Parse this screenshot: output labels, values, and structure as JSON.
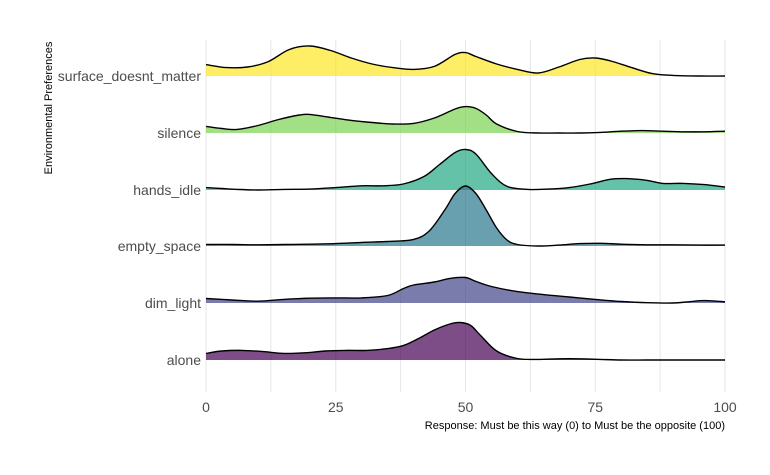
{
  "chart_data": {
    "type": "area",
    "subtype": "ridgeline",
    "title": "",
    "xlabel": "Response: Must be this way (0) to Must be the opposite (100)",
    "ylabel": "Environmental Preferences",
    "xlim": [
      0,
      100
    ],
    "x_ticks": [
      0,
      25,
      50,
      75,
      100
    ],
    "grid": true,
    "legend": "none",
    "series": [
      {
        "name": "surface_doesnt_matter",
        "color": "#fde725",
        "x": [
          0,
          4,
          8,
          12,
          16,
          20,
          24,
          28,
          32,
          36,
          40,
          44,
          48,
          50,
          52,
          56,
          60,
          64,
          68,
          72,
          75,
          78,
          82,
          86,
          90,
          95,
          100
        ],
        "density": [
          0.38,
          0.28,
          0.3,
          0.48,
          0.88,
          1.0,
          0.85,
          0.6,
          0.4,
          0.28,
          0.22,
          0.32,
          0.72,
          0.78,
          0.65,
          0.4,
          0.22,
          0.1,
          0.3,
          0.55,
          0.6,
          0.5,
          0.28,
          0.08,
          0.02,
          0.0,
          0.0
        ]
      },
      {
        "name": "silence",
        "color": "#7ad151",
        "x": [
          0,
          3,
          6,
          10,
          14,
          18,
          20,
          24,
          28,
          32,
          36,
          40,
          44,
          48,
          50,
          52,
          54,
          56,
          60,
          64,
          68,
          72,
          76,
          80,
          84,
          88,
          92,
          96,
          100
        ],
        "density": [
          0.22,
          0.15,
          0.12,
          0.25,
          0.45,
          0.6,
          0.62,
          0.52,
          0.42,
          0.35,
          0.3,
          0.32,
          0.5,
          0.8,
          0.88,
          0.82,
          0.6,
          0.3,
          0.05,
          0.0,
          0.0,
          0.0,
          0.02,
          0.06,
          0.08,
          0.06,
          0.04,
          0.04,
          0.06
        ]
      },
      {
        "name": "hands_idle",
        "color": "#22a884",
        "x": [
          0,
          3,
          6,
          10,
          15,
          20,
          25,
          30,
          34,
          38,
          42,
          45,
          48,
          50,
          52,
          55,
          58,
          62,
          66,
          70,
          74,
          78,
          81,
          85,
          88,
          92,
          96,
          100
        ],
        "density": [
          0.08,
          0.05,
          0.02,
          0.0,
          0.02,
          0.03,
          0.08,
          0.14,
          0.14,
          0.2,
          0.45,
          0.85,
          1.25,
          1.35,
          1.2,
          0.55,
          0.12,
          0.02,
          0.03,
          0.08,
          0.2,
          0.36,
          0.38,
          0.32,
          0.22,
          0.22,
          0.18,
          0.1
        ]
      },
      {
        "name": "empty_space",
        "color": "#2a788e",
        "x": [
          0,
          5,
          10,
          15,
          20,
          25,
          30,
          35,
          40,
          43,
          46,
          48,
          50,
          52,
          54,
          56,
          58,
          60,
          64,
          68,
          72,
          76,
          80,
          85,
          90,
          95,
          100
        ],
        "density": [
          0.05,
          0.05,
          0.04,
          0.05,
          0.06,
          0.08,
          0.12,
          0.15,
          0.22,
          0.5,
          1.2,
          1.75,
          2.0,
          1.75,
          1.2,
          0.6,
          0.2,
          0.05,
          0.0,
          0.03,
          0.08,
          0.09,
          0.06,
          0.04,
          0.04,
          0.03,
          0.03
        ]
      },
      {
        "name": "dim_light",
        "color": "#414487",
        "x": [
          0,
          5,
          10,
          15,
          20,
          25,
          30,
          35,
          38,
          40,
          44,
          47,
          50,
          52,
          55,
          60,
          65,
          70,
          75,
          80,
          85,
          90,
          93,
          96,
          100
        ],
        "density": [
          0.15,
          0.1,
          0.06,
          0.12,
          0.16,
          0.17,
          0.17,
          0.25,
          0.48,
          0.6,
          0.7,
          0.82,
          0.85,
          0.72,
          0.55,
          0.38,
          0.28,
          0.2,
          0.12,
          0.05,
          0.01,
          0.0,
          0.04,
          0.08,
          0.04
        ]
      },
      {
        "name": "alone",
        "color": "#440154",
        "x": [
          0,
          3,
          7,
          11,
          15,
          19,
          23,
          27,
          31,
          35,
          38,
          41,
          44,
          47,
          49,
          51,
          53,
          56,
          60,
          64,
          68,
          72,
          76,
          80,
          85,
          90,
          95,
          100
        ],
        "density": [
          0.22,
          0.3,
          0.32,
          0.28,
          0.22,
          0.24,
          0.3,
          0.32,
          0.32,
          0.38,
          0.48,
          0.72,
          1.0,
          1.2,
          1.25,
          1.15,
          0.8,
          0.3,
          0.05,
          0.02,
          0.04,
          0.04,
          0.02,
          0.0,
          0.0,
          0.0,
          0.0,
          0.0
        ]
      }
    ]
  }
}
